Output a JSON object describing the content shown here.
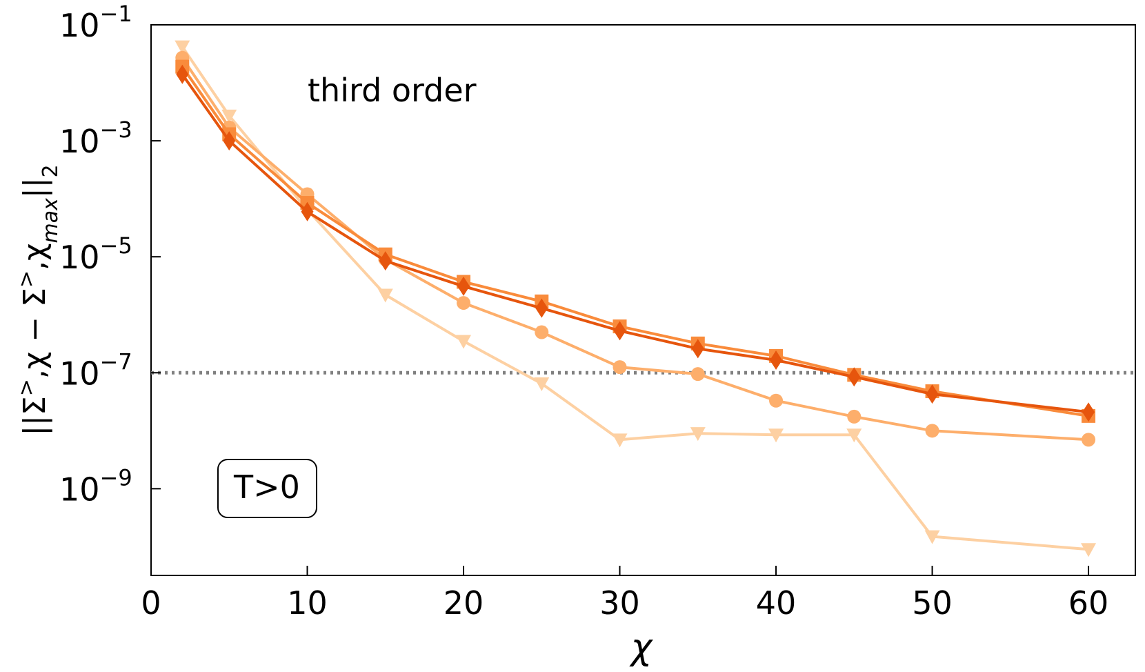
{
  "chart_data": {
    "type": "line",
    "title": "",
    "xlabel": "χ",
    "ylabel": "||Σ>,χ − Σ>,χ_max||₂",
    "xlim": [
      0,
      63
    ],
    "ylim": [
      3.2e-11,
      0.1
    ],
    "yscale": "log",
    "grid": false,
    "x_ticks": [
      0,
      10,
      20,
      30,
      40,
      50,
      60
    ],
    "y_ticks": [
      {
        "value": 0.1,
        "mant": "10",
        "exp": "−1"
      },
      {
        "value": 0.001,
        "mant": "10",
        "exp": "−3"
      },
      {
        "value": 1e-05,
        "mant": "10",
        "exp": "−5"
      },
      {
        "value": 1e-07,
        "mant": "10",
        "exp": "−7"
      },
      {
        "value": 1e-09,
        "mant": "10",
        "exp": "−9"
      }
    ],
    "annotations": {
      "order_label": "third order",
      "regime_label": "T>0"
    },
    "reference_line": {
      "y": 1e-07,
      "style": "dotted",
      "color": "#808080"
    },
    "x": [
      2,
      5,
      10,
      15,
      20,
      25,
      30,
      35,
      40,
      45,
      50,
      60
    ],
    "series": [
      {
        "marker": "triangle-down",
        "color": "#fdd0a2",
        "values": [
          0.042,
          0.0027,
          6.5e-05,
          2.2e-06,
          3.5e-07,
          6.5e-08,
          7e-09,
          9e-09,
          8.5e-09,
          8.5e-09,
          1.5e-10,
          9e-11
        ]
      },
      {
        "marker": "circle",
        "color": "#fdae6b",
        "values": [
          0.027,
          0.0017,
          0.00012,
          9e-06,
          1.6e-06,
          5e-07,
          1.25e-07,
          9.5e-08,
          3.3e-08,
          1.75e-08,
          1e-08,
          7e-09
        ]
      },
      {
        "marker": "square",
        "color": "#f98b3b",
        "values": [
          0.019,
          0.0013,
          8.5e-05,
          1.1e-05,
          3.7e-06,
          1.7e-06,
          6.3e-07,
          3.2e-07,
          1.95e-07,
          9.2e-08,
          4.8e-08,
          1.8e-08
        ]
      },
      {
        "marker": "diamond",
        "color": "#e6550d",
        "values": [
          0.014,
          0.001,
          6e-05,
          8.5e-06,
          3.1e-06,
          1.3e-06,
          5.3e-07,
          2.6e-07,
          1.65e-07,
          8.5e-08,
          4.3e-08,
          2.1e-08
        ]
      }
    ]
  }
}
